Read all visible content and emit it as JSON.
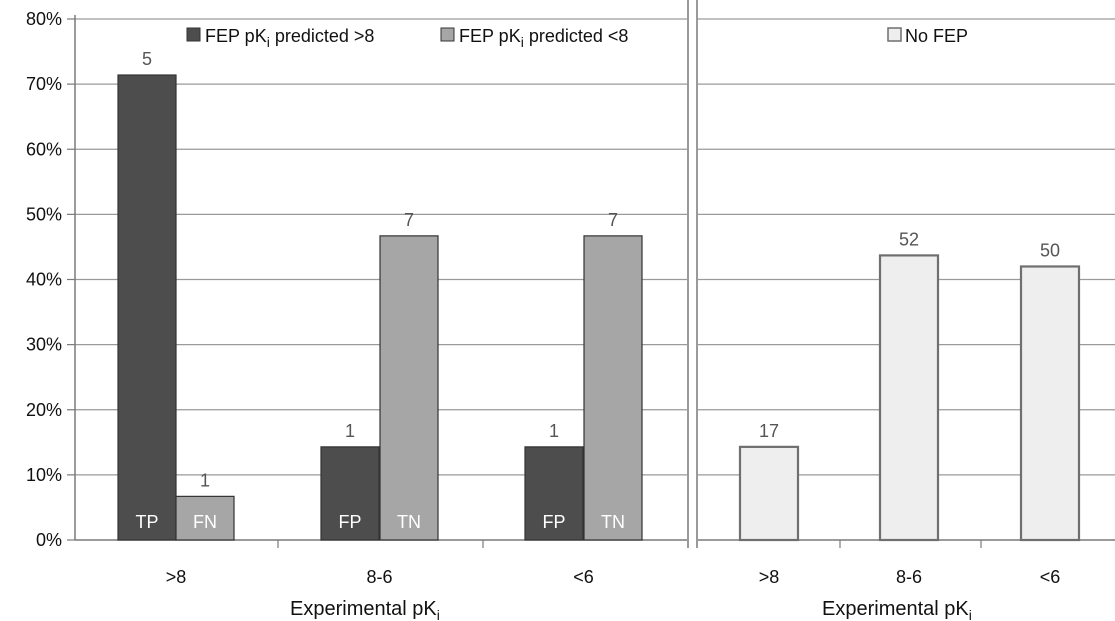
{
  "chart_data": [
    {
      "type": "bar",
      "ylim": [
        0,
        80
      ],
      "yticks": [
        "0%",
        "10%",
        "20%",
        "30%",
        "40%",
        "50%",
        "60%",
        "70%",
        "80%"
      ],
      "grid": true,
      "xlabel_main": "Experimental pK",
      "xlabel_sub": "i",
      "categories": [
        ">8",
        "8-6",
        "<6"
      ],
      "legend_position": "top",
      "series": [
        {
          "name_main": "FEP pK",
          "name_sub": "i",
          "name_rest": " predicted >8",
          "color": "#4d4d4d",
          "values": [
            71.4,
            14.3,
            14.3
          ],
          "counts": [
            "5",
            "1",
            "1"
          ],
          "inside_labels": [
            "TP",
            "FP",
            "FP"
          ]
        },
        {
          "name_main": "FEP pK",
          "name_sub": "i",
          "name_rest": " predicted <8",
          "color": "#a6a6a6",
          "values": [
            6.7,
            46.7,
            46.7
          ],
          "counts": [
            "1",
            "7",
            "7"
          ],
          "inside_labels": [
            "FN",
            "TN",
            "TN"
          ]
        }
      ]
    },
    {
      "type": "bar",
      "ylim": [
        0,
        80
      ],
      "grid": true,
      "xlabel_main": "Experimental pK",
      "xlabel_sub": "i",
      "categories": [
        ">8",
        "8-6",
        "<6"
      ],
      "legend_position": "top",
      "series": [
        {
          "name": "No FEP",
          "color": "#eeeeee",
          "values": [
            14.3,
            43.7,
            42.0
          ],
          "counts": [
            "17",
            "52",
            "50"
          ]
        }
      ]
    }
  ]
}
